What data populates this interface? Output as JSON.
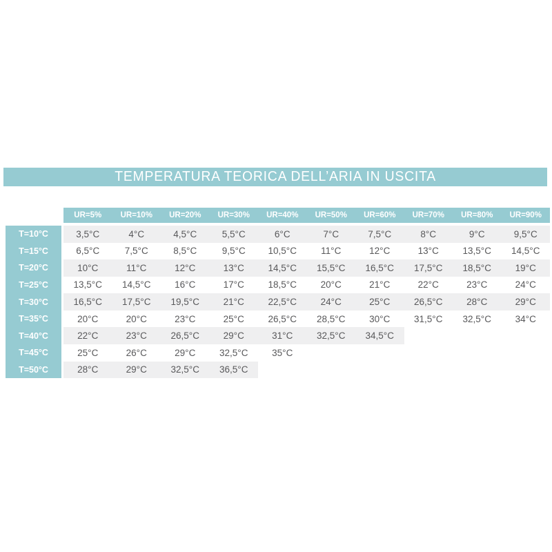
{
  "title": "TEMPERATURA TEORICA DELL’ARIA IN USCITA",
  "colors": {
    "teal": "#96cbd2",
    "stripe_gray": "#efeff0",
    "value_text": "#58585a",
    "header_text": "#ffffff",
    "page_background": "#ffffff"
  },
  "chart_data": {
    "type": "table",
    "title": "TEMPERATURA TEORICA DELL’ARIA IN USCITA",
    "column_headers": [
      "UR=5%",
      "UR=10%",
      "UR=20%",
      "UR=30%",
      "UR=40%",
      "UR=50%",
      "UR=60%",
      "UR=70%",
      "UR=80%",
      "UR=90%"
    ],
    "row_headers": [
      "T=10°C",
      "T=15°C",
      "T=20°C",
      "T=25°C",
      "T=30°C",
      "T=35°C",
      "T=40°C",
      "T=45°C",
      "T=50°C"
    ],
    "rows": [
      {
        "label": "T=10°C",
        "striped": true,
        "values": [
          "3,5°C",
          "4°C",
          "4,5°C",
          "5,5°C",
          "6°C",
          "7°C",
          "7,5°C",
          "8°C",
          "9°C",
          "9,5°C"
        ]
      },
      {
        "label": "T=15°C",
        "striped": false,
        "values": [
          "6,5°C",
          "7,5°C",
          "8,5°C",
          "9,5°C",
          "10,5°C",
          "11°C",
          "12°C",
          "13°C",
          "13,5°C",
          "14,5°C"
        ]
      },
      {
        "label": "T=20°C",
        "striped": true,
        "values": [
          "10°C",
          "11°C",
          "12°C",
          "13°C",
          "14,5°C",
          "15,5°C",
          "16,5°C",
          "17,5°C",
          "18,5°C",
          "19°C"
        ]
      },
      {
        "label": "T=25°C",
        "striped": false,
        "values": [
          "13,5°C",
          "14,5°C",
          "16°C",
          "17°C",
          "18,5°C",
          "20°C",
          "21°C",
          "22°C",
          "23°C",
          "24°C"
        ]
      },
      {
        "label": "T=30°C",
        "striped": true,
        "values": [
          "16,5°C",
          "17,5°C",
          "19,5°C",
          "21°C",
          "22,5°C",
          "24°C",
          "25°C",
          "26,5°C",
          "28°C",
          "29°C"
        ]
      },
      {
        "label": "T=35°C",
        "striped": false,
        "values": [
          "20°C",
          "20°C",
          "23°C",
          "25°C",
          "26,5°C",
          "28,5°C",
          "30°C",
          "31,5°C",
          "32,5°C",
          "34°C"
        ]
      },
      {
        "label": "T=40°C",
        "striped": true,
        "values": [
          "22°C",
          "23°C",
          "26,5°C",
          "29°C",
          "31°C",
          "32,5°C",
          "34,5°C",
          "",
          "",
          ""
        ]
      },
      {
        "label": "T=45°C",
        "striped": false,
        "values": [
          "25°C",
          "26°C",
          "29°C",
          "32,5°C",
          "35°C",
          "",
          "",
          "",
          "",
          ""
        ]
      },
      {
        "label": "T=50°C",
        "striped": true,
        "values": [
          "28°C",
          "29°C",
          "32,5°C",
          "36,5°C",
          "",
          "",
          "",
          "",
          "",
          ""
        ]
      }
    ]
  }
}
